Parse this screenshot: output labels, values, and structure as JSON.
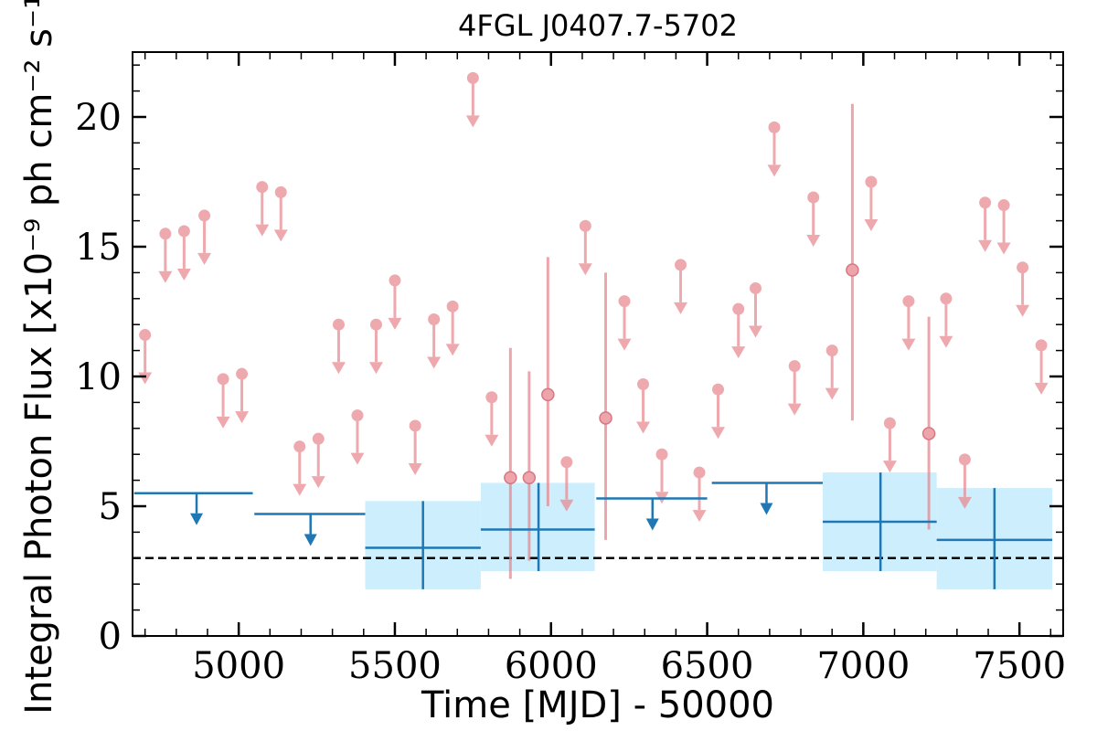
{
  "chart_data": {
    "type": "scatter",
    "title": "4FGL J0407.7-5702",
    "xlabel": "Time [MJD] - 50000",
    "ylabel": "Integral Photon Flux [x10⁻⁹ ph cm⁻² s⁻¹]",
    "xlim": [
      4660,
      7640
    ],
    "ylim": [
      0,
      22.5
    ],
    "x_ticks": [
      5000,
      5500,
      6000,
      6500,
      7000,
      7500
    ],
    "x_tick_labels": [
      "5000",
      "5500",
      "6000",
      "6500",
      "7000",
      "7500"
    ],
    "y_ticks": [
      0,
      5,
      10,
      15,
      20
    ],
    "y_tick_labels": [
      "0",
      "5",
      "10",
      "15",
      "20"
    ],
    "grid": false,
    "threshold_line": 3.0,
    "short_bin_upper_limits": {
      "color": "#e8888f",
      "x": [
        4700,
        4765,
        4825,
        4890,
        4950,
        5010,
        5075,
        5135,
        5195,
        5255,
        5320,
        5380,
        5440,
        5500,
        5565,
        5625,
        5685,
        5750,
        5810,
        6050,
        6110,
        6235,
        6295,
        6355,
        6415,
        6475,
        6535,
        6600,
        6655,
        6715,
        6780,
        6840,
        6900,
        7025,
        7085,
        7145,
        7265,
        7325,
        7390,
        7450,
        7510,
        7570
      ],
      "y": [
        11.6,
        15.5,
        15.6,
        16.2,
        9.9,
        10.1,
        17.3,
        17.1,
        7.3,
        7.6,
        12.0,
        8.5,
        12.0,
        13.7,
        8.1,
        12.2,
        12.7,
        21.5,
        9.2,
        6.7,
        15.8,
        12.9,
        9.7,
        7.0,
        14.3,
        6.3,
        9.5,
        12.6,
        13.4,
        19.6,
        10.4,
        16.9,
        11.0,
        17.5,
        8.2,
        12.9,
        13.0,
        6.8,
        16.7,
        16.6,
        14.2,
        11.2
      ]
    },
    "short_bin_detections": {
      "color": "#e8888f",
      "x": [
        5870,
        5930,
        5990,
        6175,
        6965,
        7210
      ],
      "y": [
        6.1,
        6.1,
        9.3,
        8.4,
        14.1,
        7.8
      ],
      "y_low": [
        2.2,
        2.9,
        5.0,
        3.7,
        8.3,
        4.1
      ],
      "y_high": [
        11.1,
        10.2,
        14.6,
        14.0,
        20.5,
        12.3
      ]
    },
    "long_bin_upper_limits": {
      "color": "#1f77b4",
      "x_low": [
        4665,
        5050,
        6145,
        6515
      ],
      "x_high": [
        5045,
        5405,
        6500,
        6870
      ],
      "x_center": [
        4865,
        5230,
        6325,
        6690
      ],
      "y": [
        5.5,
        4.7,
        5.3,
        5.9
      ]
    },
    "long_bin_detections": {
      "color": "#1f77b4",
      "band_color": "#cdeefc",
      "x_low": [
        5405,
        5775,
        6870,
        7235
      ],
      "x_high": [
        5775,
        6140,
        7235,
        7605
      ],
      "x_center": [
        5590,
        5960,
        7055,
        7420
      ],
      "y": [
        3.4,
        4.1,
        4.4,
        3.7
      ],
      "y_low": [
        1.8,
        2.5,
        2.5,
        1.8
      ],
      "y_high": [
        5.2,
        5.9,
        6.3,
        5.7
      ]
    }
  }
}
